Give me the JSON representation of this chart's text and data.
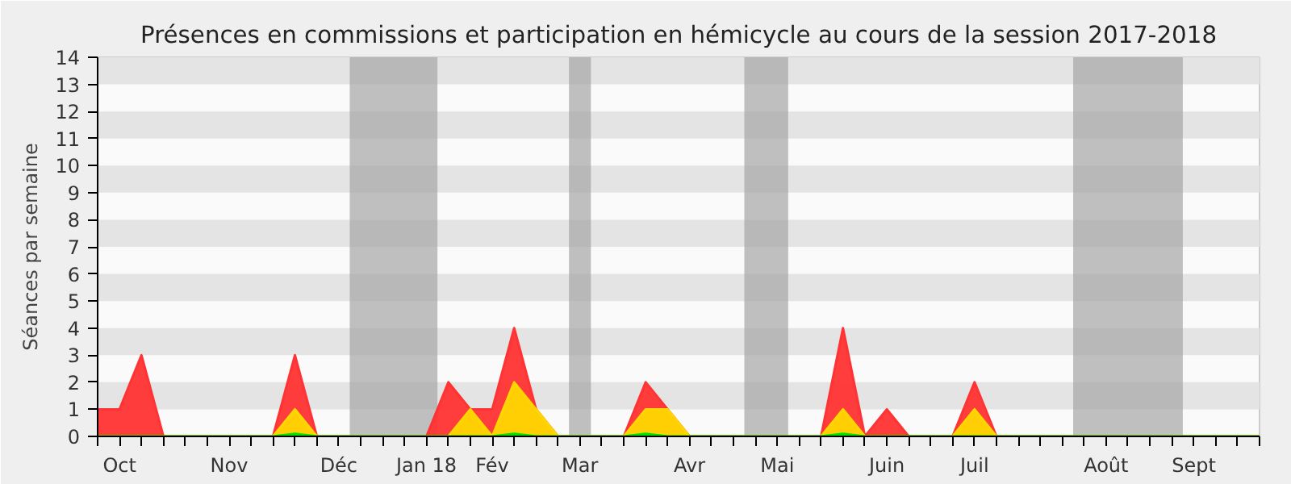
{
  "chart_data": {
    "type": "area",
    "title": "Présences en commissions et participation en hémicycle au cours de la session 2017-2018",
    "ylabel": "Séances par semaine",
    "categories": [
      null,
      "Oct",
      null,
      null,
      null,
      null,
      "Nov",
      null,
      null,
      null,
      null,
      "Déc",
      null,
      null,
      null,
      "Jan 18",
      null,
      null,
      "Fév",
      null,
      null,
      null,
      "Mar",
      null,
      null,
      null,
      null,
      "Avr",
      null,
      null,
      null,
      "Mai",
      null,
      null,
      null,
      null,
      "Juin",
      null,
      null,
      null,
      "Juil",
      null,
      null,
      null,
      null,
      null,
      "Août",
      null,
      null,
      null,
      "Sept",
      null,
      null,
      null
    ],
    "series": [
      {
        "color": "#ff3333",
        "values": [
          1,
          1,
          3,
          0,
          0,
          0,
          0,
          0,
          0,
          3,
          0,
          0,
          0,
          0,
          0,
          0,
          2,
          1,
          1,
          4,
          1,
          0,
          0,
          0,
          0,
          2,
          1,
          0,
          0,
          0,
          0,
          0,
          0,
          0,
          4,
          0,
          1,
          0,
          0,
          0,
          2,
          0,
          0,
          0,
          0,
          0,
          0,
          0,
          0,
          0,
          0,
          0,
          0,
          0
        ]
      },
      {
        "color": "#ffd700",
        "values": [
          0,
          0,
          0,
          0,
          0,
          0,
          0,
          0,
          0,
          1,
          0,
          0,
          0,
          0,
          0,
          0,
          0,
          1,
          0,
          2,
          1,
          0,
          0,
          0,
          0,
          1,
          1,
          0,
          0,
          0,
          0,
          0,
          0,
          0,
          1,
          0,
          0,
          0,
          0,
          0,
          1,
          0,
          0,
          0,
          0,
          0,
          0,
          0,
          0,
          0,
          0,
          0,
          0,
          0
        ]
      },
      {
        "color": "#00e000",
        "values": [
          0,
          0,
          0,
          0,
          0,
          0,
          0,
          0,
          0,
          0.1,
          0,
          0,
          0,
          0,
          0,
          0,
          0,
          0,
          0,
          0.1,
          0,
          0,
          0,
          0,
          0,
          0.1,
          0,
          0,
          0,
          0,
          0,
          0,
          0,
          0,
          0.1,
          0,
          0,
          0,
          0,
          0,
          0,
          0,
          0,
          0,
          0,
          0,
          0,
          0,
          0,
          0,
          0,
          0,
          0,
          0
        ]
      }
    ],
    "ylim": [
      0,
      14
    ],
    "yticks": [
      0,
      1,
      2,
      3,
      4,
      5,
      6,
      7,
      8,
      9,
      10,
      11,
      12,
      13,
      14
    ]
  }
}
